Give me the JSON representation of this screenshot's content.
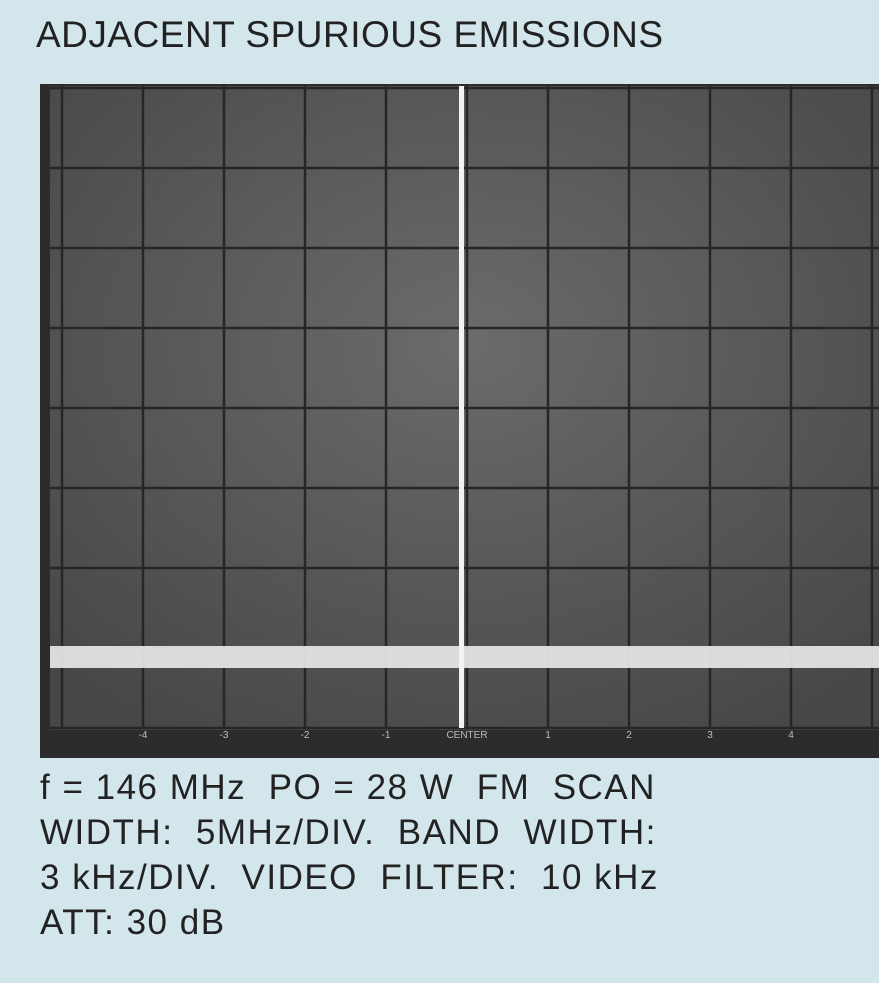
{
  "header": {
    "title": "ADJACENT SPURIOUS EMISSIONS"
  },
  "screen": {
    "x_labels": [
      "-4",
      "-3",
      "-2",
      "-1",
      "CENTER",
      "1",
      "2",
      "3",
      "4"
    ]
  },
  "caption": {
    "lines": [
      "f = 146 MHz  PO = 28 W  FM  SCAN",
      "WIDTH:  5MHz/DIV.  BAND  WIDTH:",
      "3 kHz/DIV.  VIDEO  FILTER:  10 kHz",
      "ATT: 30 dB"
    ]
  }
}
